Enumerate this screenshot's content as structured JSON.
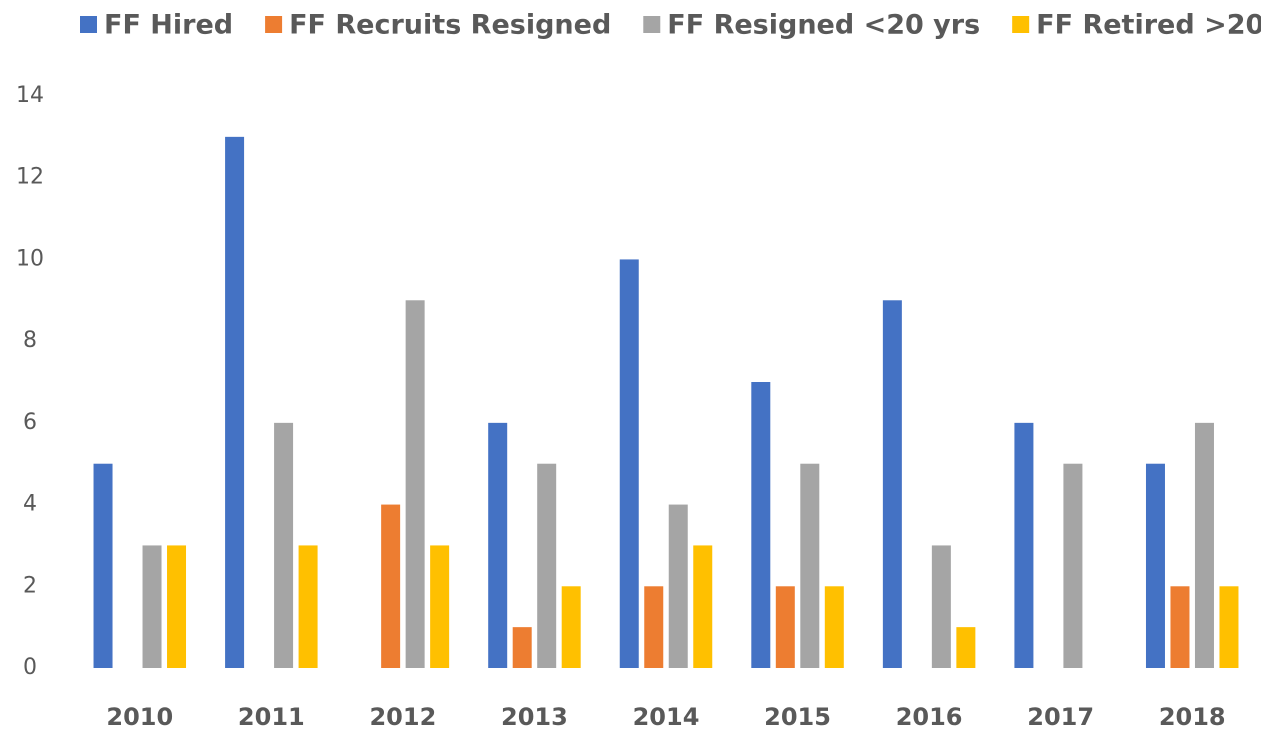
{
  "chart_data": {
    "type": "bar",
    "categories": [
      "2010",
      "2011",
      "2012",
      "2013",
      "2014",
      "2015",
      "2016",
      "2017",
      "2018"
    ],
    "series": [
      {
        "name": "FF Hired",
        "color": "#4472c4",
        "values": [
          5,
          13,
          0,
          6,
          10,
          7,
          9,
          6,
          5
        ]
      },
      {
        "name": "FF Recruits Resigned",
        "color": "#ed7d31",
        "values": [
          0,
          0,
          4,
          1,
          2,
          2,
          0,
          0,
          2
        ]
      },
      {
        "name": "FF Resigned <20 yrs",
        "color": "#a5a5a5",
        "values": [
          3,
          6,
          9,
          5,
          4,
          5,
          3,
          5,
          6
        ]
      },
      {
        "name": "FF Retired >20",
        "color": "#ffc000",
        "values": [
          3,
          3,
          3,
          2,
          3,
          2,
          1,
          0,
          2
        ]
      }
    ],
    "ylim": [
      0,
      14
    ],
    "yticks": [
      0,
      2,
      4,
      6,
      8,
      10,
      12,
      14
    ],
    "grid": false,
    "legend": "top"
  }
}
